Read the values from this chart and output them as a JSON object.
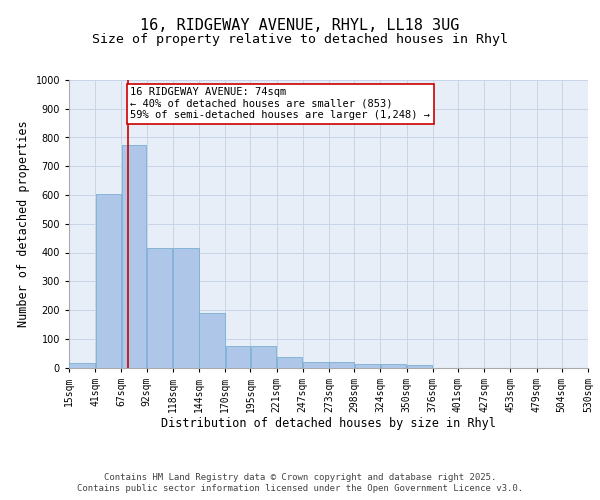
{
  "title_line1": "16, RIDGEWAY AVENUE, RHYL, LL18 3UG",
  "title_line2": "Size of property relative to detached houses in Rhyl",
  "xlabel": "Distribution of detached houses by size in Rhyl",
  "ylabel": "Number of detached properties",
  "bin_edges": [
    15,
    41,
    67,
    92,
    118,
    144,
    170,
    195,
    221,
    247,
    273,
    298,
    324,
    350,
    376,
    401,
    427,
    453,
    479,
    504,
    530
  ],
  "bar_heights": [
    15,
    605,
    775,
    415,
    415,
    190,
    75,
    75,
    35,
    18,
    18,
    12,
    12,
    8,
    0,
    0,
    0,
    0,
    0,
    0
  ],
  "bar_color": "#aec6e8",
  "bar_edge_color": "#7bafd4",
  "grid_color": "#c8d4e8",
  "background_color": "#e8eef8",
  "red_line_x": 74,
  "red_line_color": "#cc0000",
  "annotation_text": "16 RIDGEWAY AVENUE: 74sqm\n← 40% of detached houses are smaller (853)\n59% of semi-detached houses are larger (1,248) →",
  "annotation_box_color": "#ffffff",
  "annotation_border_color": "#cc0000",
  "ylim": [
    0,
    1000
  ],
  "yticks": [
    0,
    100,
    200,
    300,
    400,
    500,
    600,
    700,
    800,
    900,
    1000
  ],
  "footer_line1": "Contains HM Land Registry data © Crown copyright and database right 2025.",
  "footer_line2": "Contains public sector information licensed under the Open Government Licence v3.0.",
  "title_fontsize": 11,
  "subtitle_fontsize": 9.5,
  "tick_label_fontsize": 7,
  "axis_label_fontsize": 8.5,
  "annotation_fontsize": 7.5,
  "footer_fontsize": 6.5
}
